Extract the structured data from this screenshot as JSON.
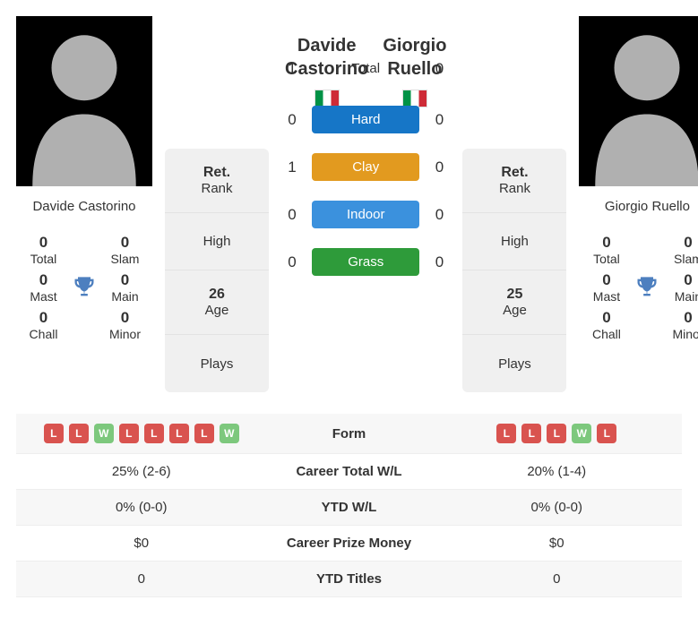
{
  "player1": {
    "name_full": "Davide Castorino",
    "first": "Davide",
    "last": "Castorino",
    "titles": {
      "total": "0",
      "slam": "0",
      "mast": "0",
      "main": "0",
      "chall": "0",
      "minor": "0"
    },
    "rank": {
      "status": "Ret.",
      "rank_label": "Rank",
      "high": "High",
      "age": "26",
      "age_label": "Age",
      "plays": "Plays"
    },
    "form": [
      "L",
      "L",
      "W",
      "L",
      "L",
      "L",
      "L",
      "W"
    ]
  },
  "player2": {
    "name_full": "Giorgio Ruello",
    "first": "Giorgio",
    "last": "Ruello",
    "titles": {
      "total": "0",
      "slam": "0",
      "mast": "0",
      "main": "0",
      "chall": "0",
      "minor": "0"
    },
    "rank": {
      "status": "Ret.",
      "rank_label": "Rank",
      "high": "High",
      "age": "25",
      "age_label": "Age",
      "plays": "Plays"
    },
    "form": [
      "L",
      "L",
      "L",
      "W",
      "L"
    ]
  },
  "labels": {
    "total": "Total",
    "slam": "Slam",
    "mast": "Mast",
    "main": "Main",
    "chall": "Chall",
    "minor": "Minor"
  },
  "h2h": {
    "total": {
      "p1": "1",
      "label": "Total",
      "p2": "0"
    },
    "hard": {
      "p1": "0",
      "label": "Hard",
      "p2": "0",
      "color": "#1676c7"
    },
    "clay": {
      "p1": "1",
      "label": "Clay",
      "p2": "0",
      "color": "#e29a1f"
    },
    "indoor": {
      "p1": "0",
      "label": "Indoor",
      "p2": "0",
      "color": "#3b91dd"
    },
    "grass": {
      "p1": "0",
      "label": "Grass",
      "p2": "0",
      "color": "#2e9b3a"
    }
  },
  "stats": {
    "form": {
      "label": "Form"
    },
    "career_wl": {
      "p1": "25% (2-6)",
      "label": "Career Total W/L",
      "p2": "20% (1-4)"
    },
    "ytd_wl": {
      "p1": "0% (0-0)",
      "label": "YTD W/L",
      "p2": "0% (0-0)"
    },
    "prize": {
      "p1": "$0",
      "label": "Career Prize Money",
      "p2": "$0"
    },
    "ytd_titles": {
      "p1": "0",
      "label": "YTD Titles",
      "p2": "0"
    }
  },
  "silhouette_color": "#b0b0b0",
  "trophy_color": "#4d7fbf",
  "badge_colors": {
    "W": "#7dc87d",
    "L": "#d9534f"
  }
}
